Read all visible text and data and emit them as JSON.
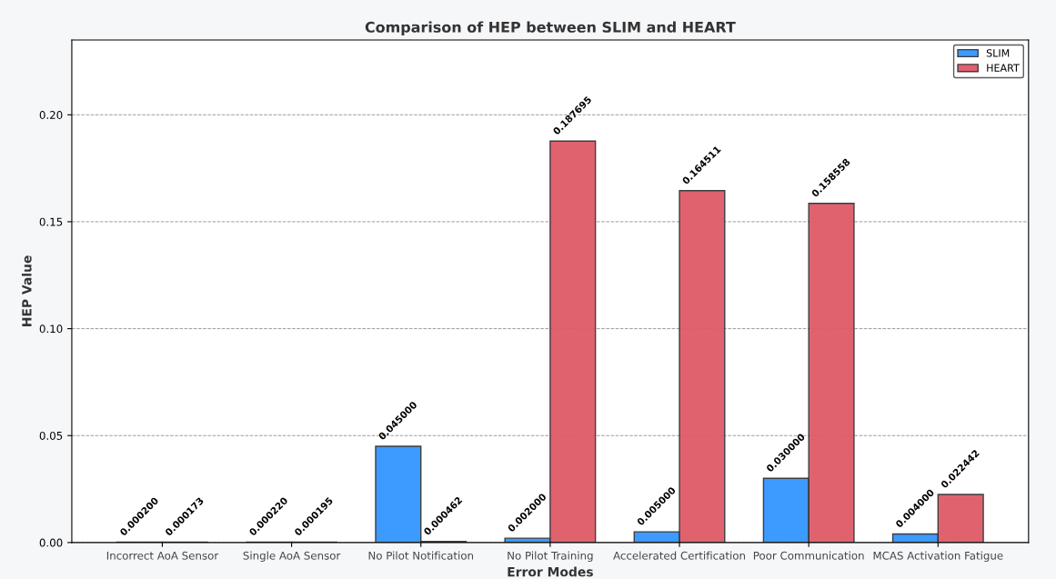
{
  "chart_data": {
    "type": "bar",
    "title": "Comparison of HEP between SLIM and HEART",
    "xlabel": "Error Modes",
    "ylabel": "HEP Value",
    "categories": [
      "Incorrect AoA Sensor",
      "Single AoA Sensor",
      "No Pilot Notification",
      "No Pilot Training",
      "Accelerated Certification",
      "Poor Communication",
      "MCAS Activation Fatigue"
    ],
    "series": [
      {
        "name": "SLIM",
        "color": "#3395ff",
        "values": [
          0.0002,
          0.00022,
          0.045,
          0.002,
          0.005,
          0.03,
          0.004
        ],
        "value_labels": [
          "0.000200",
          "0.000220",
          "0.045000",
          "0.002000",
          "0.005000",
          "0.030000",
          "0.004000"
        ]
      },
      {
        "name": "HEART",
        "color": "#e05a68",
        "values": [
          0.000173,
          0.000195,
          0.000462,
          0.187695,
          0.164511,
          0.158558,
          0.022442
        ],
        "value_labels": [
          "0.000173",
          "0.000195",
          "0.000462",
          "0.187695",
          "0.164511",
          "0.158558",
          "0.022442"
        ]
      }
    ],
    "ylim": [
      0,
      0.235
    ],
    "yticks": [
      {
        "value": 0,
        "label": "0.00"
      },
      {
        "value": 0.05,
        "label": "0.05"
      },
      {
        "value": 0.1,
        "label": "0.10"
      },
      {
        "value": 0.15,
        "label": "0.15"
      },
      {
        "value": 0.2,
        "label": "0.20"
      }
    ],
    "grid": "y",
    "legend": "top right"
  }
}
